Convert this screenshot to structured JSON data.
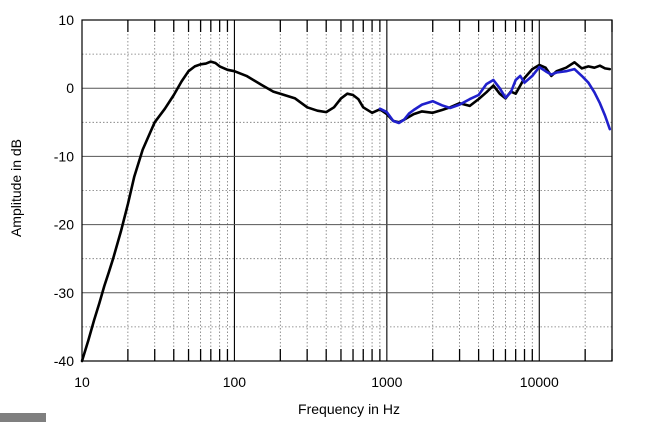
{
  "chart_data": {
    "type": "line",
    "title": "",
    "xlabel": "Frequency  in Hz",
    "ylabel": "Amplitude in dB",
    "xscale": "log",
    "xlim": [
      10,
      30000
    ],
    "ylim": [
      -40,
      10
    ],
    "x_ticks": [
      {
        "value": 10,
        "label": "10"
      },
      {
        "value": 100,
        "label": "100"
      },
      {
        "value": 1000,
        "label": "1000"
      },
      {
        "value": 10000,
        "label": "10000"
      }
    ],
    "y_ticks": [
      {
        "value": 10,
        "label": "10"
      },
      {
        "value": 0,
        "label": "0"
      },
      {
        "value": -10,
        "label": "-10"
      },
      {
        "value": -20,
        "label": "-20"
      },
      {
        "value": -30,
        "label": "-30"
      },
      {
        "value": -40,
        "label": "-40"
      }
    ],
    "grid": true,
    "legend": "none",
    "series": [
      {
        "color": "#000000",
        "points": [
          [
            10,
            -40
          ],
          [
            11,
            -37
          ],
          [
            12,
            -34
          ],
          [
            13,
            -31.5
          ],
          [
            14,
            -29
          ],
          [
            15,
            -27
          ],
          [
            16,
            -25
          ],
          [
            18,
            -21
          ],
          [
            20,
            -17
          ],
          [
            22,
            -13
          ],
          [
            25,
            -9
          ],
          [
            28,
            -6.5
          ],
          [
            30,
            -5
          ],
          [
            35,
            -3
          ],
          [
            40,
            -1
          ],
          [
            45,
            1
          ],
          [
            50,
            2.5
          ],
          [
            55,
            3.2
          ],
          [
            60,
            3.5
          ],
          [
            65,
            3.6
          ],
          [
            70,
            3.9
          ],
          [
            75,
            3.7
          ],
          [
            80,
            3.2
          ],
          [
            90,
            2.7
          ],
          [
            100,
            2.5
          ],
          [
            120,
            1.8
          ],
          [
            150,
            0.5
          ],
          [
            180,
            -0.5
          ],
          [
            200,
            -0.8
          ],
          [
            250,
            -1.5
          ],
          [
            300,
            -2.8
          ],
          [
            350,
            -3.3
          ],
          [
            400,
            -3.5
          ],
          [
            450,
            -2.8
          ],
          [
            500,
            -1.5
          ],
          [
            550,
            -0.8
          ],
          [
            600,
            -1
          ],
          [
            650,
            -1.6
          ],
          [
            700,
            -2.8
          ],
          [
            800,
            -3.6
          ],
          [
            900,
            -3.1
          ],
          [
            1000,
            -3.8
          ],
          [
            1100,
            -4.8
          ],
          [
            1200,
            -5
          ],
          [
            1300,
            -4.6
          ],
          [
            1500,
            -3.8
          ],
          [
            1700,
            -3.4
          ],
          [
            2000,
            -3.6
          ],
          [
            2300,
            -3.2
          ],
          [
            2600,
            -2.8
          ],
          [
            3000,
            -2.2
          ],
          [
            3500,
            -2.6
          ],
          [
            4000,
            -1.6
          ],
          [
            4500,
            -0.6
          ],
          [
            5000,
            0.4
          ],
          [
            5500,
            -0.8
          ],
          [
            6000,
            -1.5
          ],
          [
            6500,
            -0.5
          ],
          [
            7000,
            -0.8
          ],
          [
            8000,
            1.5
          ],
          [
            9000,
            2.8
          ],
          [
            10000,
            3.4
          ],
          [
            11000,
            3
          ],
          [
            12000,
            1.8
          ],
          [
            13000,
            2.5
          ],
          [
            15000,
            3
          ],
          [
            17000,
            3.8
          ],
          [
            19000,
            2.9
          ],
          [
            21000,
            3.2
          ],
          [
            23000,
            3
          ],
          [
            25000,
            3.3
          ],
          [
            27000,
            2.9
          ],
          [
            29000,
            2.8
          ]
        ]
      },
      {
        "color": "#2020cc",
        "points": [
          [
            900,
            -3
          ],
          [
            1000,
            -3.5
          ],
          [
            1100,
            -4.8
          ],
          [
            1200,
            -5.1
          ],
          [
            1300,
            -4.6
          ],
          [
            1400,
            -3.7
          ],
          [
            1500,
            -3.2
          ],
          [
            1700,
            -2.4
          ],
          [
            2000,
            -1.9
          ],
          [
            2300,
            -2.5
          ],
          [
            2600,
            -2.9
          ],
          [
            3000,
            -2.4
          ],
          [
            3500,
            -1.6
          ],
          [
            4000,
            -1
          ],
          [
            4500,
            0.6
          ],
          [
            5000,
            1.2
          ],
          [
            5500,
            0
          ],
          [
            6000,
            -1.4
          ],
          [
            6500,
            -0.6
          ],
          [
            7000,
            1.2
          ],
          [
            7500,
            1.8
          ],
          [
            8000,
            0.8
          ],
          [
            9000,
            1.8
          ],
          [
            10000,
            3.1
          ],
          [
            11000,
            2.5
          ],
          [
            12000,
            2
          ],
          [
            13000,
            2.3
          ],
          [
            15000,
            2.5
          ],
          [
            17000,
            2.8
          ],
          [
            19000,
            1.8
          ],
          [
            21000,
            0.8
          ],
          [
            23000,
            -0.6
          ],
          [
            25000,
            -2.2
          ],
          [
            27000,
            -4
          ],
          [
            29000,
            -6
          ]
        ]
      }
    ]
  }
}
